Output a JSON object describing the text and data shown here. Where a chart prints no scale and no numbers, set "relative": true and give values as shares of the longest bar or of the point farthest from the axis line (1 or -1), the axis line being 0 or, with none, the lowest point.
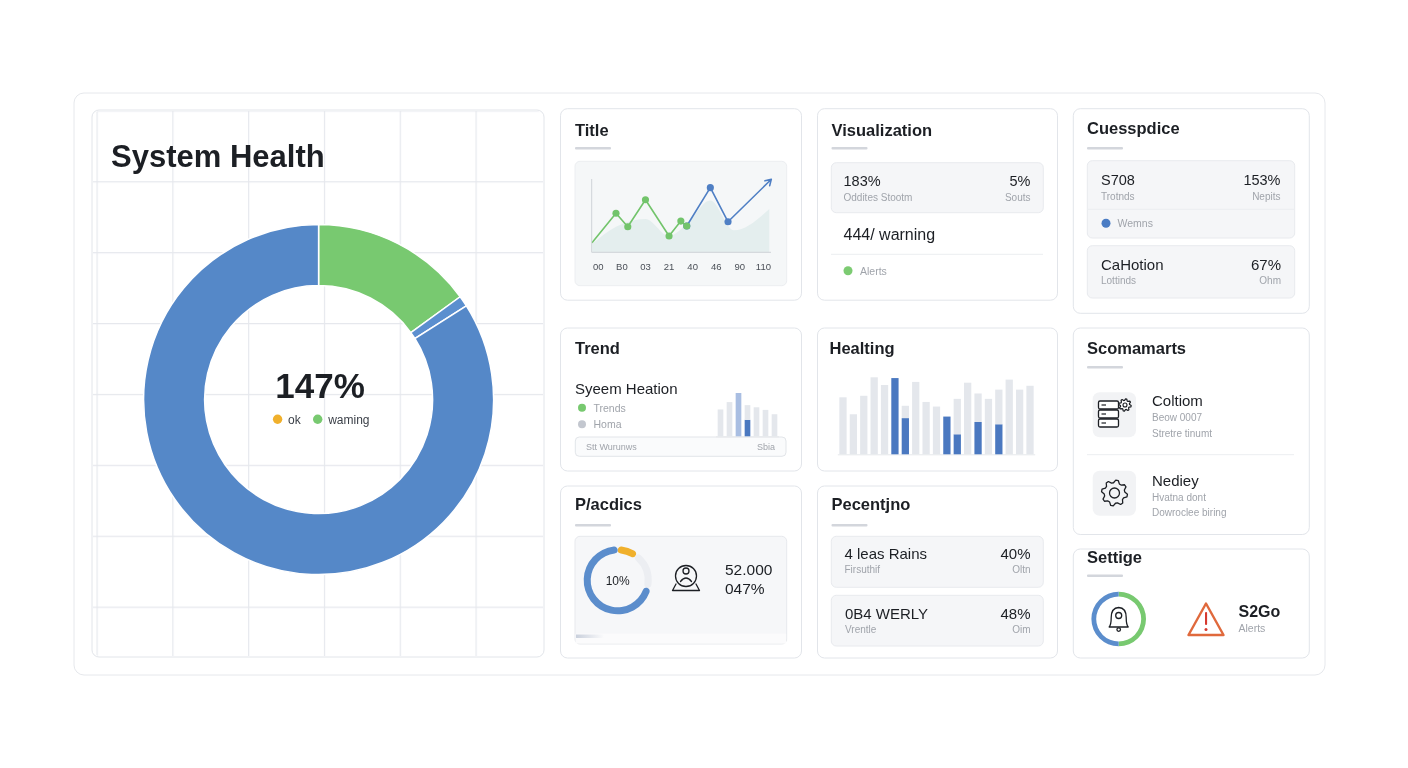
{
  "chart_data": [
    {
      "type": "donut",
      "title": "System Health",
      "categories": [
        "ok",
        "waming",
        null,
        null
      ],
      "values": [
        0,
        15,
        1,
        84
      ],
      "colors": [
        "#f0b02c",
        "#78c970",
        "#5b8fcf",
        "#5588c8"
      ],
      "legend": "center",
      "annotations": [
        "147%"
      ]
    },
    {
      "type": "line",
      "title": "Title",
      "relative": true,
      "tick_labels": "x",
      "categories": [
        null,
        "00",
        null,
        null,
        null,
        "B0",
        null,
        null,
        null,
        "03",
        null,
        null,
        null,
        "21",
        null,
        null,
        null,
        "40",
        null,
        null,
        null,
        "46",
        null,
        null,
        null,
        "90",
        null,
        null,
        null,
        "110",
        null
      ],
      "series": [
        {
          "type": "area",
          "color": "#e4eeee",
          "values": [
            0.12,
            null,
            null,
            null,
            0.36,
            null,
            null,
            null,
            null,
            0.47,
            null,
            null,
            null,
            0.23,
            null,
            null,
            0.4,
            null,
            null,
            null,
            0.73,
            null,
            null,
            null,
            0.31,
            null,
            null,
            null,
            null,
            null,
            0.61
          ]
        },
        {
          "color": "#72c46b",
          "marker": "circle",
          "values": [
            0.14,
            null,
            null,
            null,
            0.55,
            null,
            0.36,
            null,
            null,
            0.74,
            null,
            null,
            null,
            0.23,
            null,
            0.44,
            0.37,
            null,
            null,
            null,
            null,
            null,
            null,
            null,
            null,
            null,
            null,
            null,
            null,
            null,
            null
          ]
        },
        {
          "color": "#4f7fc4",
          "marker": "circle",
          "values": [
            null,
            null,
            null,
            null,
            null,
            null,
            null,
            null,
            null,
            null,
            null,
            null,
            null,
            null,
            null,
            null,
            0.37,
            null,
            null,
            null,
            0.91,
            null,
            null,
            0.43,
            null,
            null,
            null,
            null,
            null,
            null,
            1.0
          ]
        }
      ]
    },
    {
      "type": "other",
      "title": "Visualization",
      "annotations": [
        "183%",
        "Oddites Stootm",
        "5%",
        "Souts",
        "444/ warning",
        "Alerts"
      ]
    },
    {
      "type": "other",
      "title": "Cuesspdice",
      "annotations": [
        "S708",
        "Trotnds",
        "153%",
        "Nepits",
        "Wemns",
        "CaHotion",
        "Lottinds",
        "67%",
        "Ohm"
      ]
    },
    {
      "type": "bar",
      "title": "Trend",
      "categories": [
        null,
        null,
        null,
        null,
        null,
        null,
        null
      ],
      "stacked": true,
      "relative": true,
      "series": [
        {
          "color": "#4a78c0",
          "values": [
            null,
            null,
            null,
            0.38,
            null,
            null,
            null
          ]
        },
        {
          "colors": [
            "#e4e7ec",
            "#e4e7ec",
            "#a9bee2",
            "#e4e7ec",
            "#e4e7ec",
            "#e4e7ec",
            "#e4e7ec"
          ],
          "values": [
            0.62,
            0.79,
            1.0,
            0.34,
            0.67,
            0.61,
            0.51
          ]
        }
      ],
      "annotations": [
        "Syeem Heation",
        "Trends",
        "Homa",
        "Stt Wurunws",
        "Sbia"
      ]
    },
    {
      "type": "bar",
      "title": "Healting",
      "categories": [
        null,
        null,
        null,
        null,
        null,
        null,
        null,
        null,
        null,
        null,
        null,
        null,
        null,
        null,
        null,
        null,
        null,
        null,
        null
      ],
      "stacked": true,
      "relative": true,
      "series": [
        {
          "color": "#4a78c0",
          "values": [
            null,
            null,
            null,
            null,
            null,
            0.99,
            0.47,
            null,
            null,
            null,
            0.49,
            0.26,
            null,
            0.42,
            null,
            0.39,
            null,
            null,
            null
          ]
        },
        {
          "color": "#e4e7ec",
          "values": [
            0.74,
            0.52,
            0.76,
            1.0,
            0.9,
            null,
            0.16,
            0.94,
            0.68,
            0.62,
            null,
            0.46,
            0.93,
            0.37,
            0.72,
            0.45,
            0.97,
            0.84,
            0.89
          ]
        }
      ]
    },
    {
      "type": "other",
      "title": "Scomamarts",
      "annotations": [
        "Coltiom",
        "Beow 0007",
        "Stretre tinumt",
        "Nediey",
        "Hvatna dont",
        "Dowroclee biring"
      ]
    },
    {
      "type": "donut",
      "title": "P/acdics",
      "categories": [
        null,
        null,
        null
      ],
      "values": [
        10,
        19,
        71
      ],
      "colors": [
        "#f0b02c",
        "#eceef2",
        "#5b8dcc"
      ],
      "annotations": [
        "10%",
        "52.000",
        "047%"
      ]
    },
    {
      "type": "other",
      "title": "Pecentjno",
      "annotations": [
        "4 leas Rains",
        "Firsuthif",
        "40%",
        "Oltn",
        "0B4 WERLY",
        "Vrentle",
        "48%",
        "Oim"
      ]
    },
    {
      "type": "donut",
      "title": "Settige",
      "categories": [
        null,
        null
      ],
      "values": [
        50,
        50
      ],
      "colors": [
        "#78c970",
        "#5b8dcc"
      ],
      "annotations": [
        "S2Go",
        "Alerts"
      ]
    }
  ]
}
